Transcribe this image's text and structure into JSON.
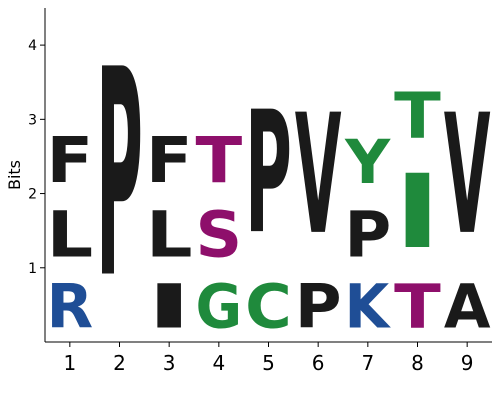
{
  "chart_data": {
    "type": "sequence-logo",
    "ylabel": "Bits",
    "ylim": [
      0,
      4.5
    ],
    "yticks": [
      "1",
      "2",
      "3",
      "4"
    ],
    "positions": [
      "1",
      "2",
      "3",
      "4",
      "5",
      "6",
      "7",
      "8",
      "9"
    ],
    "stacks": [
      [
        {
          "letter": "R",
          "bits": 0.95,
          "color": "#1f4e96"
        },
        {
          "letter": "L",
          "bits": 1.0,
          "color": "#1a1a1a"
        },
        {
          "letter": "F",
          "bits": 1.0,
          "color": "#1a1a1a"
        }
      ],
      [
        {
          "letter": "P",
          "bits": 4.5,
          "color": "#1a1a1a"
        }
      ],
      [
        {
          "letter": "I",
          "bits": 0.95,
          "color": "#1a1a1a"
        },
        {
          "letter": "L",
          "bits": 1.0,
          "color": "#1a1a1a"
        },
        {
          "letter": "F",
          "bits": 1.0,
          "color": "#1a1a1a"
        }
      ],
      [
        {
          "letter": "G",
          "bits": 0.95,
          "color": "#1f8a3c"
        },
        {
          "letter": "S",
          "bits": 1.0,
          "color": "#8e0f6b"
        },
        {
          "letter": "T",
          "bits": 1.0,
          "color": "#8e0f6b"
        }
      ],
      [
        {
          "letter": "C",
          "bits": 0.95,
          "color": "#1f8a3c"
        },
        {
          "letter": "P",
          "bits": 2.65,
          "color": "#1a1a1a"
        }
      ],
      [
        {
          "letter": "P",
          "bits": 0.95,
          "color": "#1a1a1a"
        },
        {
          "letter": "V",
          "bits": 2.6,
          "color": "#1a1a1a"
        }
      ],
      [
        {
          "letter": "K",
          "bits": 0.95,
          "color": "#1f4e96"
        },
        {
          "letter": "P",
          "bits": 1.0,
          "color": "#1a1a1a"
        },
        {
          "letter": "Y",
          "bits": 0.95,
          "color": "#1f8a3c"
        }
      ],
      [
        {
          "letter": "T",
          "bits": 0.95,
          "color": "#8e0f6b"
        },
        {
          "letter": "I",
          "bits": 1.6,
          "color": "#1f8a3c"
        },
        {
          "letter": "T",
          "bits": 1.0,
          "color": "#1f8a3c"
        }
      ],
      [
        {
          "letter": "A",
          "bits": 0.95,
          "color": "#1a1a1a"
        },
        {
          "letter": "V",
          "bits": 2.6,
          "color": "#1a1a1a"
        }
      ]
    ]
  }
}
